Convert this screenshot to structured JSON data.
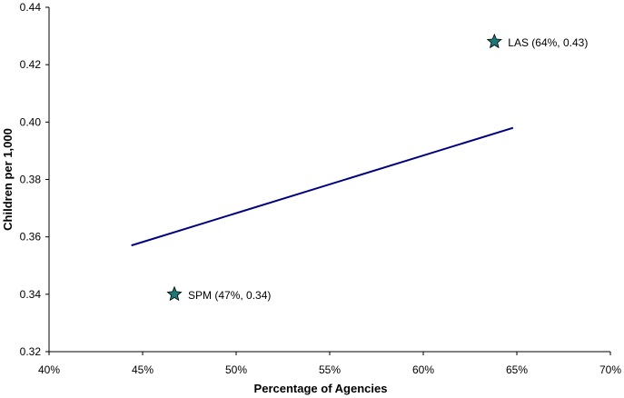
{
  "chart_data": {
    "type": "scatter",
    "title": "",
    "xlabel": "Percentage of Agencies",
    "ylabel": "Children per 1,000",
    "xlim": [
      40,
      70
    ],
    "ylim": [
      0.32,
      0.44
    ],
    "x_ticks": [
      "40%",
      "45%",
      "50%",
      "55%",
      "60%",
      "65%",
      "70%"
    ],
    "x_tick_values": [
      40,
      45,
      50,
      55,
      60,
      65,
      70
    ],
    "y_ticks": [
      "0.32",
      "0.34",
      "0.36",
      "0.38",
      "0.40",
      "0.42",
      "0.44"
    ],
    "y_tick_values": [
      0.32,
      0.34,
      0.36,
      0.38,
      0.4,
      0.42,
      0.44
    ],
    "grid": false,
    "points": [
      {
        "x": 63.8,
        "y": 0.428,
        "label": "LAS (64%, 0.43)",
        "marker": "star"
      },
      {
        "x": 46.7,
        "y": 0.34,
        "label": "SPM (47%, 0.34)",
        "marker": "star"
      }
    ],
    "trendline": {
      "x": [
        44.4,
        64.8
      ],
      "y": [
        0.357,
        0.398
      ]
    },
    "colors": {
      "marker": "#1a7a7a",
      "trendline": "#000080",
      "axis": "#000000"
    }
  }
}
